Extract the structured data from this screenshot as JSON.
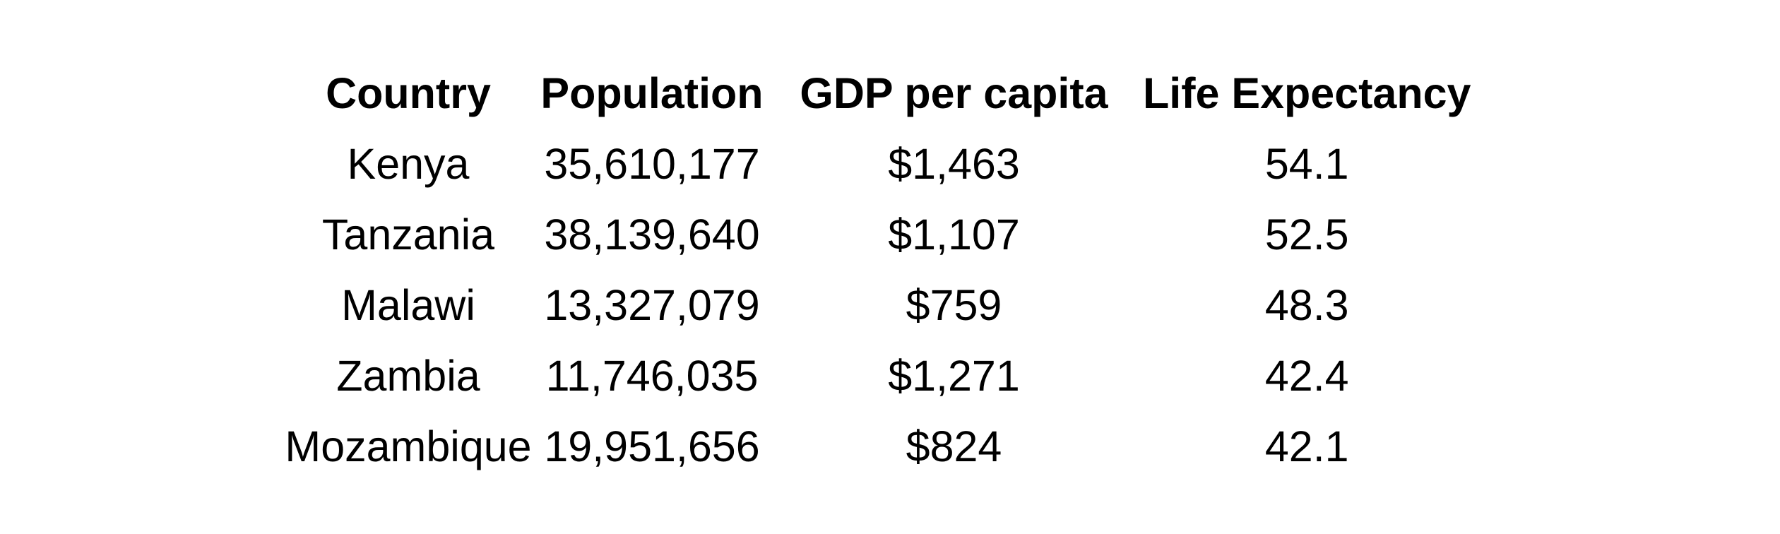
{
  "table": {
    "headers": [
      "Country",
      "Population",
      "GDP per capita",
      "Life Expectancy"
    ],
    "rows": [
      [
        "Kenya",
        "35,610,177",
        "$1,463",
        "54.1"
      ],
      [
        "Tanzania",
        "38,139,640",
        "$1,107",
        "52.5"
      ],
      [
        "Malawi",
        "13,327,079",
        "$759",
        "48.3"
      ],
      [
        "Zambia",
        "11,746,035",
        "$1,271",
        "42.4"
      ],
      [
        "Mozambique",
        "19,951,656",
        "$824",
        "42.1"
      ]
    ]
  },
  "colors": {
    "text": "#000000",
    "background": "#ffffff"
  }
}
